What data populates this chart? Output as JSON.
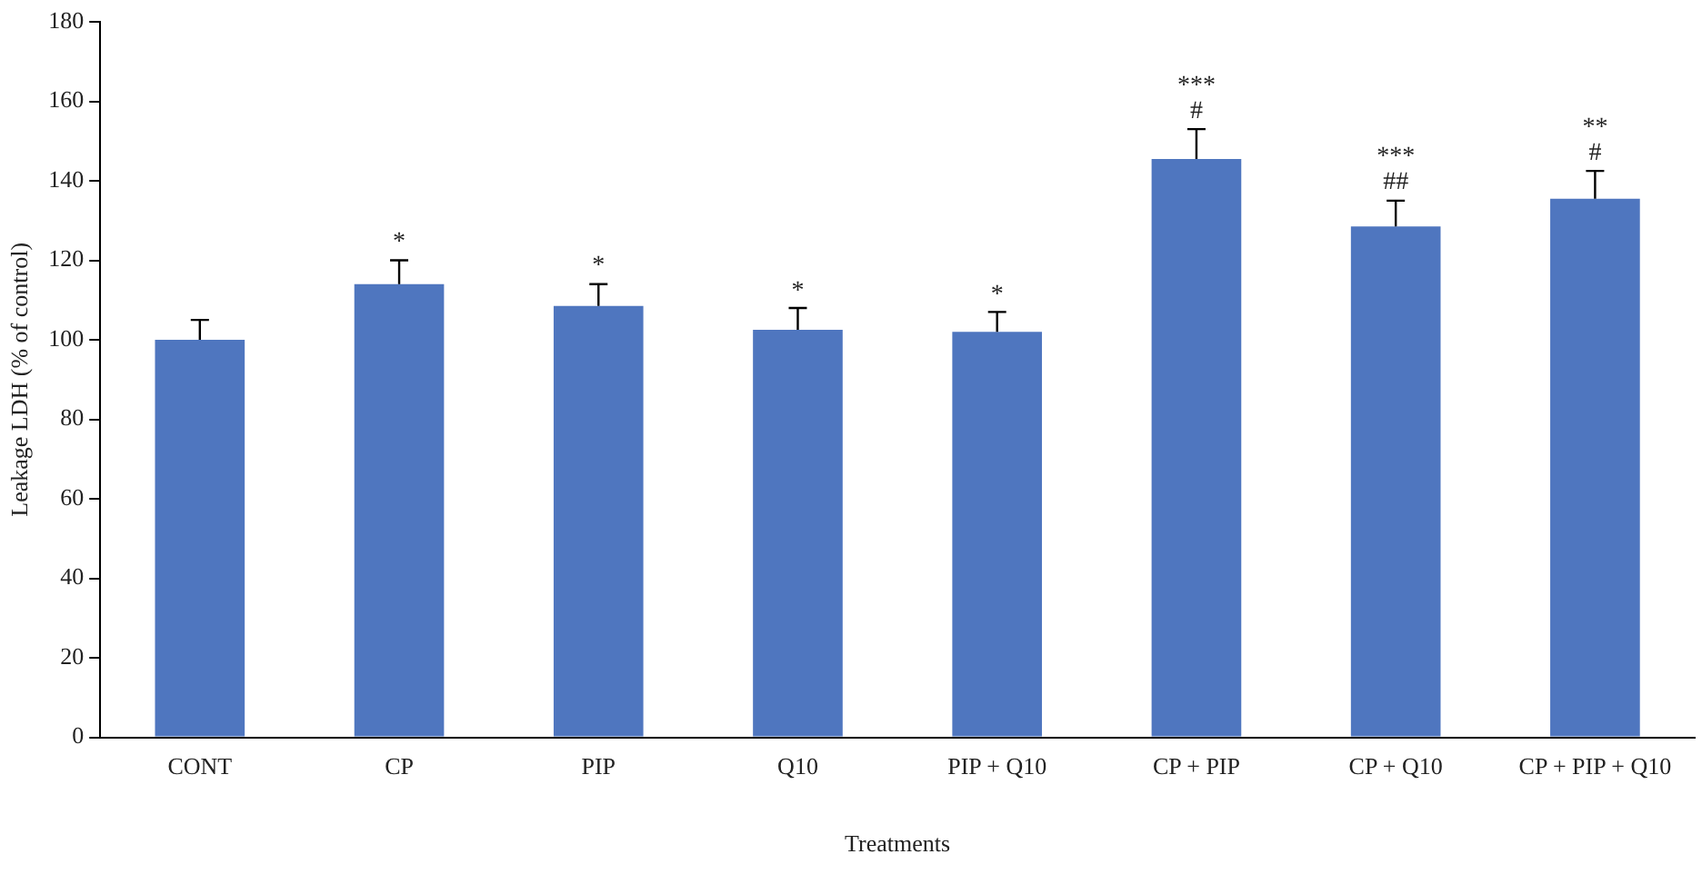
{
  "chart_data": {
    "type": "bar",
    "xlabel": "Treatments",
    "ylabel": "Leakage LDH (% of control)",
    "categories": [
      "CONT",
      "CP",
      "PIP",
      "Q10",
      "PIP + Q10",
      "CP + PIP",
      "CP + Q10",
      "CP + PIP + Q10"
    ],
    "values": [
      100,
      114,
      108.5,
      102.5,
      102,
      145.5,
      128.5,
      135.5
    ],
    "errors": [
      [
        100,
        105
      ],
      [
        114,
        120
      ],
      [
        108.5,
        114
      ],
      [
        102.5,
        108
      ],
      [
        102,
        107
      ],
      [
        145.5,
        153
      ],
      [
        128.5,
        135
      ],
      [
        135.5,
        142.5
      ]
    ],
    "color": "#4f76bf",
    "ylim": [
      0,
      180
    ],
    "yticks": [
      0,
      20,
      40,
      60,
      80,
      100,
      120,
      140,
      160,
      180
    ],
    "grid": false,
    "legend": false,
    "value_labels": [
      null,
      "*",
      "*",
      "*",
      "*",
      "***\n#",
      "***\n##",
      "**\n#"
    ]
  }
}
